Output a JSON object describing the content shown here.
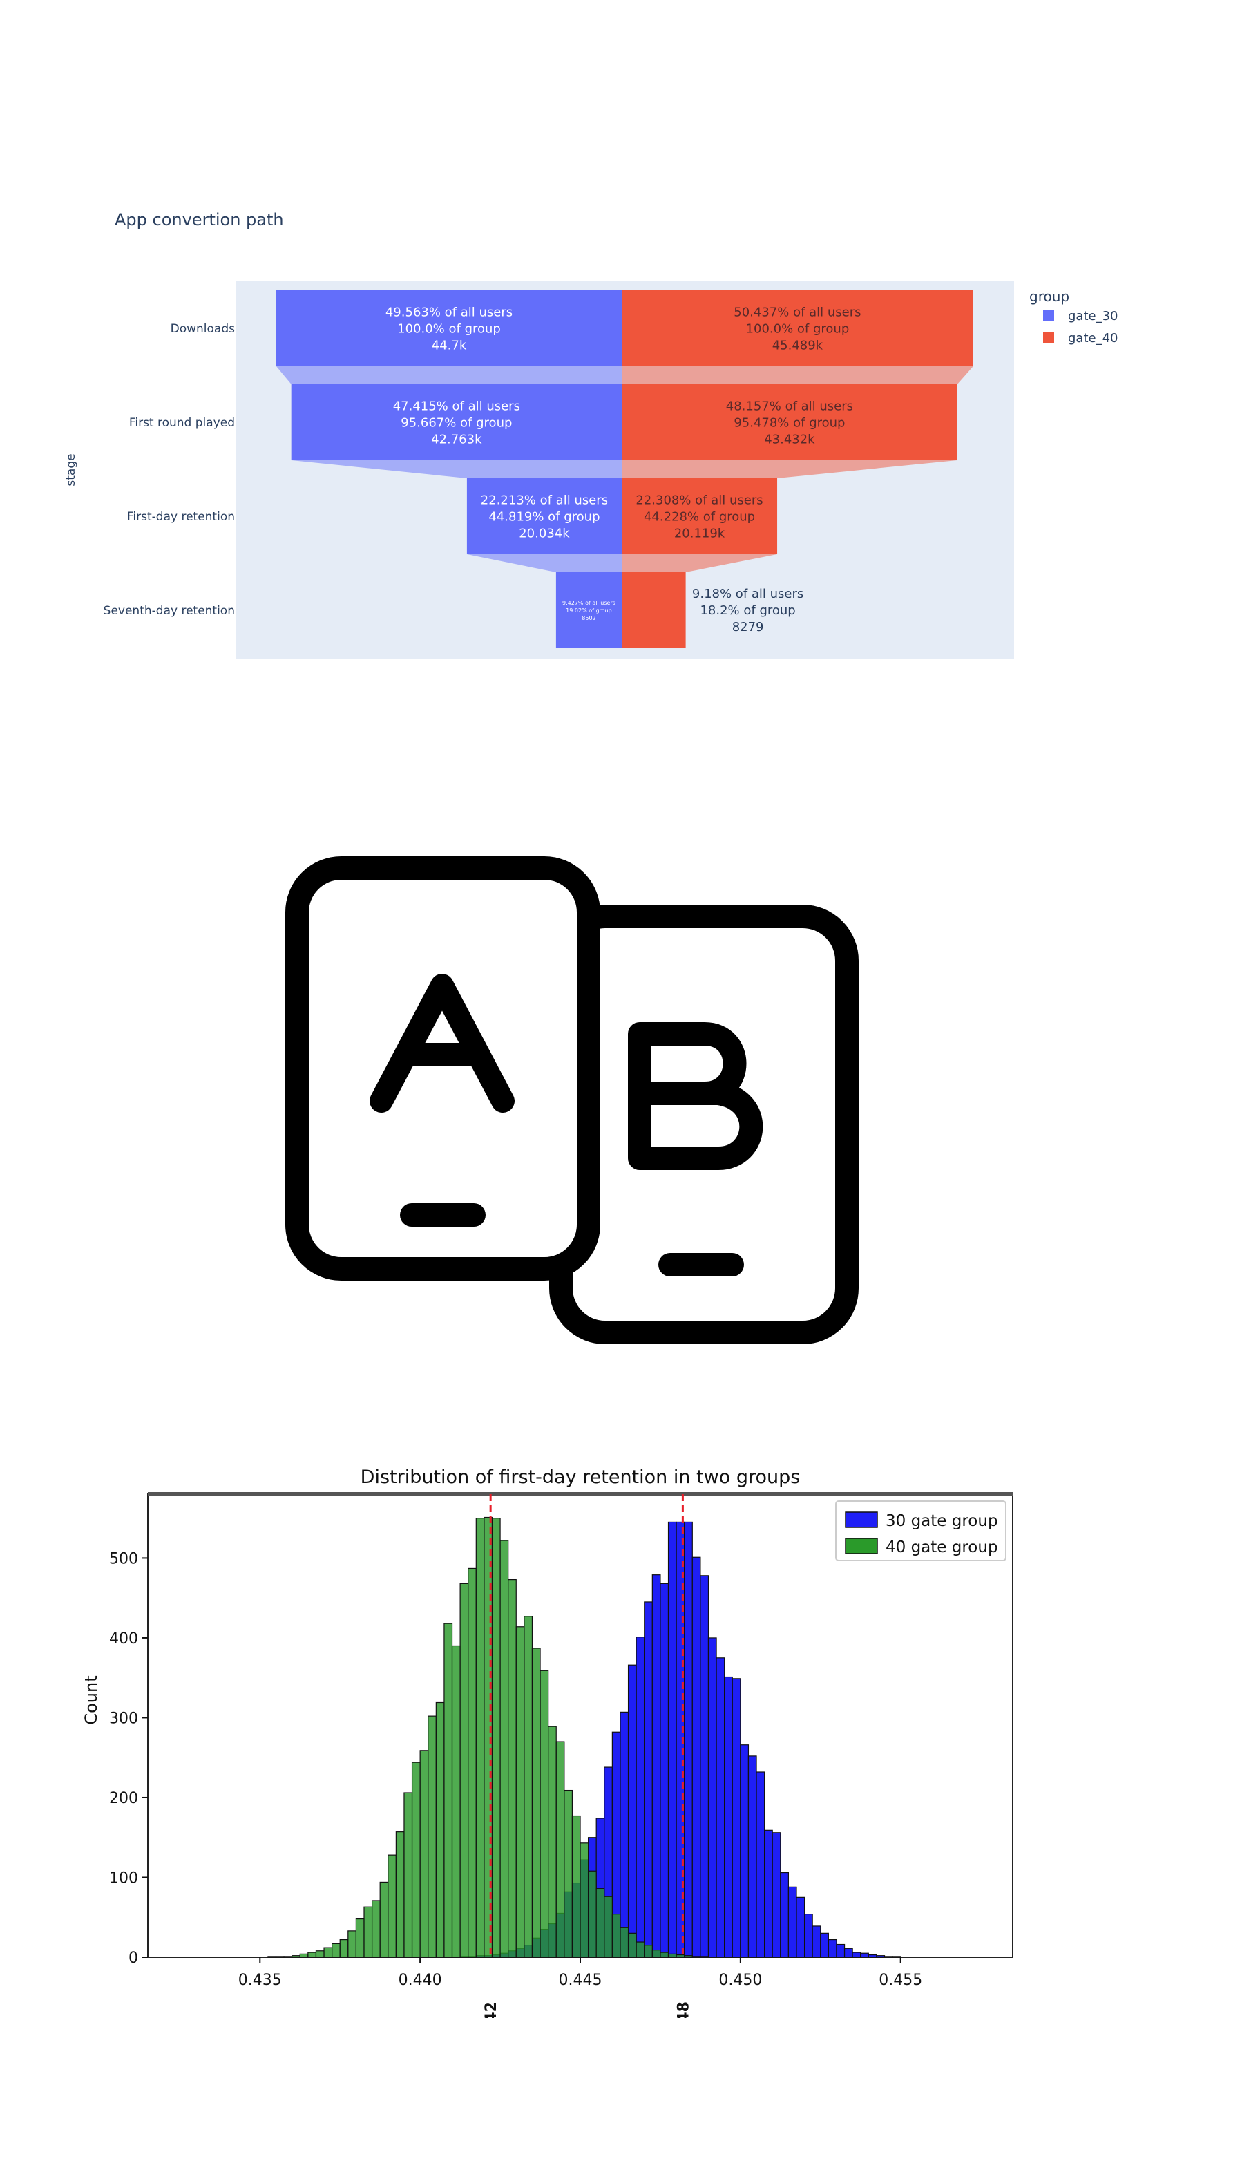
{
  "chart_data": [
    {
      "type": "funnel",
      "title": "App convertion path",
      "ylabel": "stage",
      "legend_title": "group",
      "legend_placement": "top-right",
      "stages": [
        "Downloads",
        "First round played",
        "First-day retention",
        "Seventh-day retention"
      ],
      "series": [
        {
          "name": "gate_30",
          "color": "#636efa",
          "values": [
            44700,
            42763,
            20034,
            8502
          ],
          "labels": [
            [
              "49.563% of all users",
              "100.0% of group",
              "44.7k"
            ],
            [
              "47.415% of all users",
              "95.667% of group",
              "42.763k"
            ],
            [
              "22.213% of all users",
              "44.819% of group",
              "20.034k"
            ],
            [
              "9.427% of all users",
              "19.02% of group",
              "8502"
            ]
          ]
        },
        {
          "name": "gate_40",
          "color": "#ef553b",
          "values": [
            45489,
            43432,
            20119,
            8279
          ],
          "labels": [
            [
              "50.437% of all users",
              "100.0% of group",
              "45.489k"
            ],
            [
              "48.157% of all users",
              "95.478% of group",
              "43.432k"
            ],
            [
              "22.308% of all users",
              "44.228% of group",
              "20.119k"
            ],
            [
              "9.18% of all users",
              "18.2% of group",
              "8279"
            ]
          ]
        }
      ]
    },
    {
      "type": "histogram",
      "title": "Distribution of first-day retention in two groups",
      "xlabel": "",
      "ylabel": "Count",
      "xlim": [
        0.4315,
        0.4585
      ],
      "ylim": [
        0,
        580
      ],
      "xticks": [
        "0.435",
        "0.440",
        "0.445",
        "0.450",
        "0.455"
      ],
      "yticks": [
        "0",
        "100",
        "200",
        "300",
        "400",
        "500"
      ],
      "bin_width": 0.00025,
      "legend_placement": "top-right",
      "vlines": [
        {
          "x": 0.4422,
          "label": "0.442",
          "color": "#e8202a"
        },
        {
          "x": 0.4482,
          "label": "0.448",
          "color": "#e8202a"
        }
      ],
      "series": [
        {
          "name": "30 gate group",
          "color": "#1f1ff5",
          "mean": 0.4482,
          "sd": 0.00185,
          "peak": 545
        },
        {
          "name": "40 gate group",
          "color": "#2a9a2a",
          "mean": 0.4422,
          "sd": 0.00185,
          "peak": 550
        }
      ]
    }
  ],
  "logo": {
    "name": "ab-test-icon",
    "letters": [
      "A",
      "B"
    ]
  }
}
